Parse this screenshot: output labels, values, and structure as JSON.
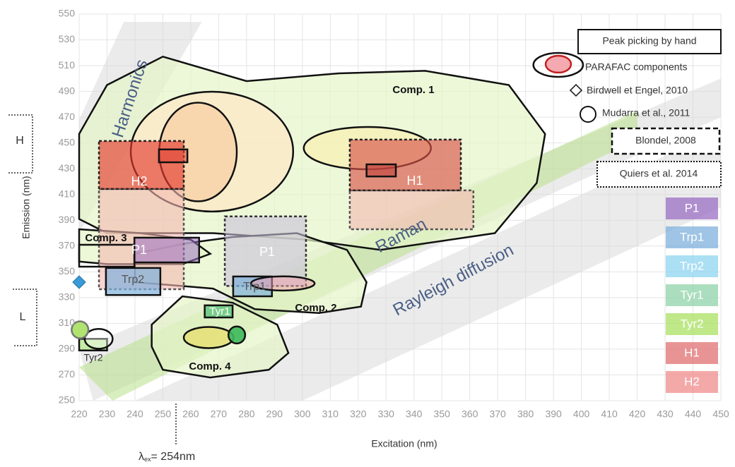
{
  "chart_data": {
    "type": "region",
    "xlabel": "Excitation (nm)",
    "ylabel": "Emission (nm)",
    "xlim": [
      220,
      450
    ],
    "ylim": [
      250,
      550
    ],
    "xticks": [
      220,
      230,
      240,
      250,
      260,
      270,
      280,
      290,
      300,
      310,
      320,
      330,
      340,
      350,
      360,
      370,
      380,
      390,
      400,
      410,
      420,
      430,
      440,
      450
    ],
    "yticks": [
      250,
      270,
      290,
      310,
      330,
      350,
      370,
      390,
      410,
      430,
      450,
      470,
      490,
      510,
      530,
      550
    ],
    "grid": true,
    "annotations": [
      "Harmonics",
      "Raman",
      "Rayleigh diffusion",
      "Comp. 1",
      "Comp. 2",
      "Comp. 3",
      "Comp. 4",
      "H2",
      "H1",
      "P1",
      "P1",
      "Trp2",
      "Trp1",
      "Tyr1",
      "Tyr2",
      "H",
      "L"
    ],
    "lambda_note": [
      "λ",
      "ex",
      "= 254nm"
    ],
    "legend": [
      "Peak picking by hand",
      "PARAFAC components",
      "Birdwell et Engel, 2010",
      "Mudarra et al., 2011",
      "Blondel, 2008",
      "Quiers et al. 2014"
    ],
    "components": [
      {
        "name": "P1",
        "color": "#9b6fc4"
      },
      {
        "name": "Trp1",
        "color": "#7fb0dc"
      },
      {
        "name": "Trp2",
        "color": "#8fd4f0"
      },
      {
        "name": "Tyr1",
        "color": "#8fd3a8"
      },
      {
        "name": "Tyr2",
        "color": "#a9e060"
      },
      {
        "name": "H1",
        "color": "#e07070"
      },
      {
        "name": "H2",
        "color": "#f08c8c"
      }
    ],
    "regions": [
      {
        "shape": "outline",
        "color": "#d8d8d8",
        "opacity": 0.5,
        "points": [
          [
            236,
            544
          ],
          [
            264,
            544
          ],
          [
            220,
            380
          ],
          [
            220,
            468
          ]
        ]
      },
      {
        "shape": "outline",
        "color": "#d8d8d8",
        "opacity": 0.5,
        "points": [
          [
            220,
            290
          ],
          [
            450,
            500
          ],
          [
            450,
            470
          ],
          [
            225,
            250
          ]
        ]
      },
      {
        "shape": "outline",
        "color": "#b8e08a",
        "opacity": 0.55,
        "points": [
          [
            220,
            276
          ],
          [
            420,
            475
          ],
          [
            420,
            453
          ],
          [
            232,
            250
          ]
        ]
      },
      {
        "shape": "outline",
        "color": "#d8d8d8",
        "opacity": 0.5,
        "points": [
          [
            240,
            250
          ],
          [
            450,
            460
          ],
          [
            450,
            400
          ],
          [
            300,
            250
          ]
        ]
      },
      {
        "shape": "outline",
        "color": "#e6f5c8",
        "opacity": 0.7,
        "stroke": "#111",
        "points": [
          [
            220,
            457
          ],
          [
            230,
            495
          ],
          [
            250,
            517
          ],
          [
            280,
            498
          ],
          [
            313,
            504
          ],
          [
            344,
            506
          ],
          [
            374,
            495
          ],
          [
            387,
            457
          ],
          [
            384,
            419
          ],
          [
            369,
            380
          ],
          [
            328,
            367
          ],
          [
            301,
            375
          ],
          [
            268,
            380
          ],
          [
            230,
            380
          ],
          [
            220,
            391
          ],
          [
            220,
            424
          ]
        ]
      },
      {
        "shape": "outline",
        "color": "#e6f5c8",
        "opacity": 0.7,
        "stroke": "#111",
        "points": [
          [
            240,
            364
          ],
          [
            258,
            372
          ],
          [
            275,
            377
          ],
          [
            298,
            380
          ],
          [
            316,
            367
          ],
          [
            323,
            342
          ],
          [
            321,
            323
          ],
          [
            306,
            318
          ],
          [
            283,
            321
          ],
          [
            268,
            337
          ],
          [
            240,
            342
          ]
        ]
      },
      {
        "shape": "outline",
        "color": "#e6f5c8",
        "opacity": 0.7,
        "stroke": "#111",
        "points": [
          [
            220,
            383
          ],
          [
            242,
            380
          ],
          [
            260,
            375
          ],
          [
            267,
            364
          ],
          [
            257,
            356
          ],
          [
            230,
            356
          ],
          [
            220,
            358
          ]
        ]
      },
      {
        "shape": "outline",
        "color": "#e6f5c8",
        "opacity": 0.7,
        "stroke": "#111",
        "points": [
          [
            246,
            309
          ],
          [
            257,
            331
          ],
          [
            275,
            326
          ],
          [
            291,
            309
          ],
          [
            295,
            287
          ],
          [
            288,
            274
          ],
          [
            267,
            268
          ],
          [
            250,
            274
          ],
          [
            246,
            292
          ]
        ]
      },
      {
        "shape": "ellipse",
        "color": "#fbe9c8",
        "opacity": 0.8,
        "stroke": "#111",
        "x": [
          238.5,
          296.7
        ],
        "y": [
          396.8,
          489.8
        ]
      },
      {
        "shape": "ellipse",
        "color": "#f8d2a8",
        "opacity": 0.8,
        "stroke": "#111",
        "x": [
          248.7,
          276.5
        ],
        "y": [
          404.7,
          481.3
        ]
      },
      {
        "shape": "ellipse",
        "color": "#f6f0b8",
        "opacity": 0.8,
        "stroke": "#111",
        "x": [
          300.5,
          346.1
        ],
        "y": [
          429.6,
          462.4
        ]
      },
      {
        "shape": "rect",
        "color": "#f4b8b0",
        "opacity": 0.6,
        "stroke": "#555",
        "dash": true,
        "x": [
          227.1,
          257.5
        ],
        "y": [
          336.5,
          414.3
        ]
      },
      {
        "shape": "rect",
        "color": "#e53b30",
        "opacity": 0.65,
        "stroke": "#222",
        "dash": true,
        "x": [
          227.1,
          257.5
        ],
        "y": [
          414.3,
          451.5
        ]
      },
      {
        "shape": "rect",
        "color": "#f4b8b0",
        "opacity": 0.6,
        "stroke": "#555",
        "dash": true,
        "x": [
          317,
          361.3
        ],
        "y": [
          383,
          413.2
        ]
      },
      {
        "shape": "rect",
        "color": "#d9534a",
        "opacity": 0.65,
        "stroke": "#222",
        "dash": true,
        "x": [
          317,
          356.8
        ],
        "y": [
          413.2,
          452.6
        ]
      },
      {
        "shape": "rect",
        "color": "#e04a3a",
        "opacity": 0.6,
        "stroke": "#111",
        "x": [
          248.6,
          258.8
        ],
        "y": [
          435,
          445
        ]
      },
      {
        "shape": "rect",
        "color": "#c0403a",
        "opacity": 0.6,
        "stroke": "#111",
        "x": [
          323,
          333.5
        ],
        "y": [
          424,
          433.4
        ]
      },
      {
        "shape": "rect",
        "color": "#c8c0d8",
        "opacity": 0.6,
        "stroke": "#333",
        "dash": true,
        "x": [
          272.2,
          301.3
        ],
        "y": [
          339,
          393
        ]
      },
      {
        "shape": "rect",
        "color": "#9b6fc4",
        "opacity": 0.55,
        "stroke": "#111",
        "x": [
          239.8,
          263
        ],
        "y": [
          357.3,
          376.5
        ]
      },
      {
        "shape": "rect",
        "color": "#7fb0dc",
        "opacity": 0.7,
        "stroke": "#111",
        "x": [
          229.6,
          249.1
        ],
        "y": [
          332,
          353
        ]
      },
      {
        "shape": "rect",
        "color": "#7fb0dc",
        "opacity": 0.7,
        "stroke": "#111",
        "x": [
          275.2,
          289.1
        ],
        "y": [
          331,
          346.4
        ]
      },
      {
        "shape": "ellipse",
        "color": "#f4a0b0",
        "opacity": 0.5,
        "stroke": "#111",
        "x": [
          281.6,
          304.4
        ],
        "y": [
          335.5,
          346.5
        ]
      },
      {
        "shape": "rect",
        "color": "#5cc47a",
        "opacity": 0.8,
        "stroke": "#111",
        "x": [
          265,
          275
        ],
        "y": [
          314.6,
          324
        ]
      },
      {
        "shape": "ellipse",
        "color": "#e6e070",
        "opacity": 0.8,
        "stroke": "#111",
        "x": [
          257.5,
          275.3
        ],
        "y": [
          290.8,
          307.2
        ]
      },
      {
        "shape": "ellipse",
        "color": "#3cb85a",
        "opacity": 0.9,
        "stroke": "#111",
        "x": [
          273.5,
          279.5
        ],
        "y": [
          294.4,
          307.6
        ]
      },
      {
        "shape": "rect",
        "color": "#b8e890",
        "opacity": 0.8,
        "stroke": "#111",
        "x": [
          220,
          230
        ],
        "y": [
          289,
          298
        ]
      },
      {
        "shape": "ellipse",
        "color": "#ffffff",
        "opacity": 0.4,
        "stroke": "#111",
        "x": [
          222,
          232
        ],
        "y": [
          290.3,
          305.7
        ]
      },
      {
        "shape": "ellipse",
        "color": "#a9e060",
        "opacity": 0.9,
        "stroke": "#777",
        "x": [
          217.3,
          223.3
        ],
        "y": [
          298.4,
          311.6
        ]
      },
      {
        "shape": "rect",
        "color": "#ffffff",
        "opacity": 0,
        "stroke": "#111",
        "x": [
          220,
          239.8
        ],
        "y": [
          354,
          371
        ]
      },
      {
        "shape": "point",
        "color": "#3a9ad8",
        "opacity": 1,
        "stroke": "#2070a0",
        "x": [
          220
        ],
        "y": [
          342
        ]
      },
      {
        "shape": "ellipse",
        "color": "#ffffff",
        "opacity": 0,
        "stroke": "#111",
        "x": [
          382.8,
          400.6
        ],
        "y": [
          501.3,
          519.9
        ]
      },
      {
        "shape": "ellipse",
        "color": "#f4a0a8",
        "opacity": 0.9,
        "stroke": "#c02020",
        "x": [
          387.2,
          396.3
        ],
        "y": [
          504.6,
          517.7
        ]
      }
    ]
  }
}
